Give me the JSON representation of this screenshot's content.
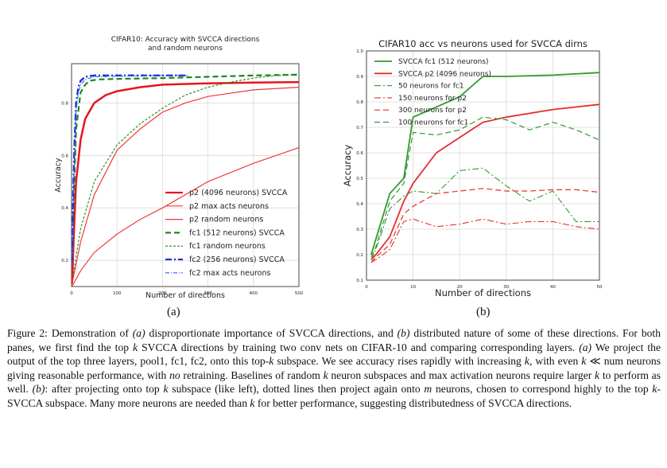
{
  "chart_data": [
    {
      "type": "line",
      "title": "CIFAR10: Accuracy with SVCCA directions and random neurons",
      "title_lines": [
        "CIFAR10: Accuracy with SVCCA directions",
        "and random neurons"
      ],
      "xlabel": "Number of directions",
      "ylabel": "Accuracy",
      "xlim": [
        0,
        500
      ],
      "ylim": [
        0.1,
        0.95
      ],
      "xticks": [
        0,
        100,
        200,
        300,
        400,
        500
      ],
      "yticks": [
        0.2,
        0.4,
        0.6,
        0.8
      ],
      "grid": true,
      "legend_position": "lower-right",
      "series": [
        {
          "name": "p2 (4096 neurons) SVCCA",
          "color": "#e8151b",
          "style": "solid",
          "width": 2.5,
          "x": [
            1,
            5,
            10,
            20,
            30,
            50,
            75,
            100,
            150,
            200,
            300,
            400,
            500
          ],
          "y": [
            0.11,
            0.3,
            0.5,
            0.66,
            0.74,
            0.8,
            0.83,
            0.845,
            0.86,
            0.87,
            0.875,
            0.878,
            0.88
          ]
        },
        {
          "name": "p2 max acts neurons",
          "color": "#f03a3a",
          "style": "solid",
          "width": 1.2,
          "x": [
            1,
            20,
            50,
            100,
            150,
            200,
            250,
            300,
            400,
            500
          ],
          "y": [
            0.11,
            0.27,
            0.45,
            0.62,
            0.7,
            0.765,
            0.8,
            0.825,
            0.85,
            0.86
          ]
        },
        {
          "name": "p2 random neurons",
          "color": "#f03a3a",
          "style": "solid",
          "width": 1.2,
          "x": [
            1,
            20,
            50,
            100,
            150,
            200,
            250,
            300,
            400,
            500
          ],
          "y": [
            0.1,
            0.16,
            0.23,
            0.3,
            0.355,
            0.4,
            0.45,
            0.5,
            0.57,
            0.63
          ]
        },
        {
          "name": "fc1 (512 neurons) SVCCA",
          "color": "#1a8a1a",
          "style": "dashed",
          "width": 2.2,
          "x": [
            1,
            5,
            10,
            20,
            30,
            40,
            60,
            100,
            200,
            300,
            400,
            500
          ],
          "y": [
            0.2,
            0.45,
            0.7,
            0.84,
            0.87,
            0.885,
            0.89,
            0.892,
            0.895,
            0.9,
            0.905,
            0.908
          ]
        },
        {
          "name": "fc1 random neurons",
          "color": "#1a8a1a",
          "style": "dashed-thin",
          "width": 1.1,
          "x": [
            1,
            20,
            50,
            100,
            150,
            200,
            250,
            300,
            350,
            400,
            450,
            500
          ],
          "y": [
            0.12,
            0.32,
            0.5,
            0.64,
            0.72,
            0.78,
            0.83,
            0.86,
            0.88,
            0.895,
            0.905,
            0.91
          ]
        },
        {
          "name": "fc2 (256 neurons) SVCCA",
          "color": "#1f2fd6",
          "style": "dashdot",
          "width": 2.4,
          "x": [
            1,
            3,
            6,
            10,
            15,
            20,
            30,
            50,
            100,
            200,
            256
          ],
          "y": [
            0.2,
            0.4,
            0.62,
            0.8,
            0.86,
            0.885,
            0.9,
            0.905,
            0.905,
            0.905,
            0.905
          ]
        },
        {
          "name": "fc2 max acts neurons",
          "color": "#3a55f0",
          "style": "dashdot-thin",
          "width": 1.1,
          "x": [
            1,
            3,
            6,
            10,
            15,
            20,
            30,
            50,
            100,
            200,
            256
          ],
          "y": [
            0.18,
            0.36,
            0.58,
            0.77,
            0.84,
            0.87,
            0.89,
            0.9,
            0.902,
            0.905,
            0.905
          ]
        }
      ]
    },
    {
      "type": "line",
      "title": "CIFAR10 acc vs neurons used for SVCCA dirns",
      "xlabel": "Number of directions",
      "ylabel": "Accuracy",
      "xlim": [
        0,
        50
      ],
      "ylim": [
        0.1,
        1.0
      ],
      "xticks": [
        0,
        10,
        20,
        30,
        40,
        50
      ],
      "yticks": [
        0.1,
        0.2,
        0.3,
        0.4,
        0.5,
        0.6,
        0.7,
        0.8,
        0.9,
        1.0
      ],
      "grid": true,
      "legend_position": "top-left",
      "series": [
        {
          "name": "SVCCA fc1 (512 neurons)",
          "color": "#2e9a2e",
          "style": "solid",
          "width": 1.8,
          "x": [
            1,
            2,
            5,
            8,
            10,
            15,
            20,
            25,
            30,
            40,
            50
          ],
          "y": [
            0.2,
            0.26,
            0.44,
            0.5,
            0.74,
            0.78,
            0.82,
            0.9,
            0.9,
            0.905,
            0.915
          ]
        },
        {
          "name": "SVCCA p2 (4096 neurons)",
          "color": "#e62e2e",
          "style": "solid",
          "width": 1.8,
          "x": [
            1,
            2,
            5,
            8,
            10,
            15,
            20,
            25,
            30,
            40,
            50
          ],
          "y": [
            0.18,
            0.2,
            0.27,
            0.41,
            0.48,
            0.6,
            0.66,
            0.72,
            0.74,
            0.77,
            0.79
          ]
        },
        {
          "name": "50 neurons for fc1",
          "color": "#2e9a2e",
          "style": "dashdot",
          "width": 1.1,
          "x": [
            1,
            2,
            5,
            8,
            10,
            15,
            20,
            25,
            30,
            35,
            40,
            45,
            50
          ],
          "y": [
            0.18,
            0.22,
            0.38,
            0.43,
            0.45,
            0.44,
            0.53,
            0.54,
            0.47,
            0.41,
            0.45,
            0.33,
            0.33
          ]
        },
        {
          "name": "150 neurons for p2",
          "color": "#e62e2e",
          "style": "dashdot",
          "width": 1.1,
          "x": [
            1,
            2,
            5,
            8,
            10,
            15,
            20,
            25,
            30,
            35,
            40,
            45,
            50
          ],
          "y": [
            0.17,
            0.18,
            0.22,
            0.33,
            0.34,
            0.31,
            0.32,
            0.34,
            0.32,
            0.33,
            0.33,
            0.31,
            0.3
          ]
        },
        {
          "name": "300 neurons for p2",
          "color": "#e62e2e",
          "style": "dashed",
          "width": 1.2,
          "x": [
            1,
            2,
            5,
            8,
            10,
            15,
            20,
            25,
            30,
            35,
            40,
            45,
            50
          ],
          "y": [
            0.17,
            0.19,
            0.24,
            0.36,
            0.39,
            0.44,
            0.45,
            0.46,
            0.45,
            0.45,
            0.455,
            0.455,
            0.445
          ]
        },
        {
          "name": "100 neurons for fc1",
          "color": "#2e9a2e",
          "style": "dashed",
          "width": 1.2,
          "x": [
            1,
            2,
            5,
            8,
            10,
            15,
            20,
            25,
            30,
            35,
            40,
            45,
            50
          ],
          "y": [
            0.19,
            0.23,
            0.41,
            0.48,
            0.68,
            0.67,
            0.69,
            0.74,
            0.73,
            0.69,
            0.72,
            0.69,
            0.65
          ]
        }
      ]
    }
  ],
  "panel_labels": {
    "a": "(a)",
    "b": "(b)"
  },
  "caption": {
    "lead": "Figure 2: Demonstration of ",
    "a_tag": "(a)",
    "t1": " disproportionate importance of SVCCA directions, and ",
    "b_tag": "(b)",
    "t2": " distributed nature of some of these directions. For both panes, we first find the top ",
    "k1": "k",
    "t3": " SVCCA directions by training two conv nets on CIFAR-10 and comparing corresponding layers. ",
    "a_tag2": "(a)",
    "t4": " We project the output of the top three layers, pool1, fc1, fc2, onto this top-",
    "k2": "k",
    "t5": " subspace. We see accuracy rises rapidly with increasing ",
    "k3": "k",
    "t6": ", with even ",
    "k4": "k",
    "t7": " ≪ num neurons giving reasonable performance, with ",
    "no": "no",
    "t8": " retraining. Baselines of random ",
    "k5": "k",
    "t9": " neuron subspaces and max activation neurons require larger ",
    "k6": "k",
    "t10": " to perform as well. ",
    "b_tag2": "(b)",
    "t11": ": after projecting onto top ",
    "k7": "k",
    "t12": " subspace (like left), dotted lines then project again onto ",
    "m": "m",
    "t13": " neurons, chosen to correspond highly to the top ",
    "k8": "k",
    "t14": "-SVCCA subspace. Many more neurons are needed than ",
    "k9": "k",
    "t15": " for better performance, suggesting distributedness of SVCCA directions."
  }
}
